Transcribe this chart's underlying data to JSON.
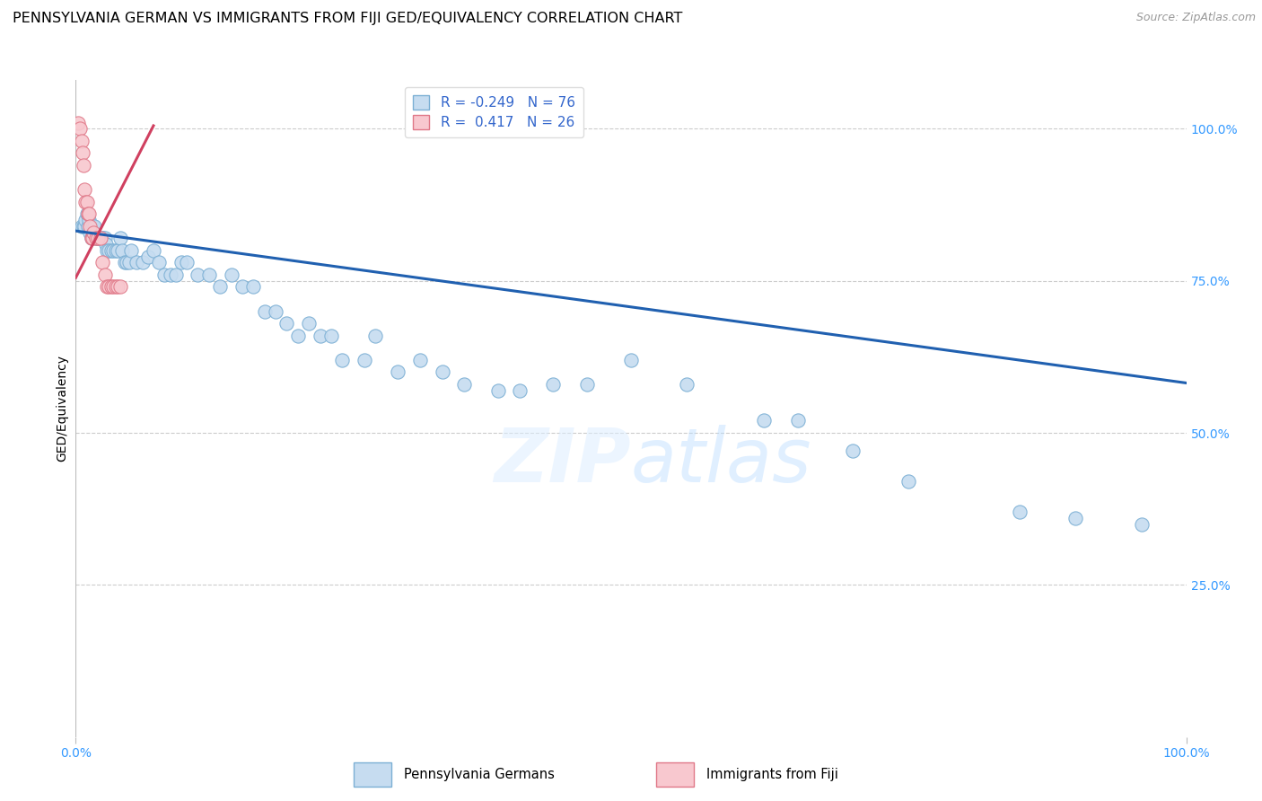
{
  "title": "PENNSYLVANIA GERMAN VS IMMIGRANTS FROM FIJI GED/EQUIVALENCY CORRELATION CHART",
  "source": "Source: ZipAtlas.com",
  "ylabel": "GED/Equivalency",
  "watermark": "ZIPatlas",
  "legend_blue_r": "-0.249",
  "legend_blue_n": "76",
  "legend_pink_r": "0.417",
  "legend_pink_n": "26",
  "legend_label_blue": "Pennsylvania Germans",
  "legend_label_pink": "Immigrants from Fiji",
  "xlim": [
    0.0,
    1.0
  ],
  "ylim": [
    0.0,
    1.08
  ],
  "xtick_positions": [
    0.0,
    1.0
  ],
  "xtick_labels": [
    "0.0%",
    "100.0%"
  ],
  "ytick_values": [
    0.25,
    0.5,
    0.75,
    1.0
  ],
  "ytick_labels": [
    "25.0%",
    "50.0%",
    "75.0%",
    "100.0%"
  ],
  "blue_color": "#c6dcf0",
  "blue_edge": "#7bafd4",
  "pink_color": "#f8c8cf",
  "pink_edge": "#e07888",
  "trend_blue": "#2060b0",
  "trend_pink": "#d04060",
  "blue_scatter_x": [
    0.005,
    0.007,
    0.008,
    0.009,
    0.01,
    0.011,
    0.012,
    0.013,
    0.014,
    0.015,
    0.016,
    0.017,
    0.018,
    0.019,
    0.02,
    0.021,
    0.022,
    0.024,
    0.025,
    0.026,
    0.027,
    0.028,
    0.03,
    0.032,
    0.034,
    0.036,
    0.038,
    0.04,
    0.042,
    0.044,
    0.046,
    0.048,
    0.05,
    0.055,
    0.06,
    0.065,
    0.07,
    0.075,
    0.08,
    0.085,
    0.09,
    0.095,
    0.1,
    0.11,
    0.12,
    0.13,
    0.14,
    0.15,
    0.16,
    0.17,
    0.18,
    0.19,
    0.2,
    0.21,
    0.22,
    0.23,
    0.24,
    0.26,
    0.27,
    0.29,
    0.31,
    0.33,
    0.35,
    0.38,
    0.4,
    0.43,
    0.46,
    0.5,
    0.55,
    0.62,
    0.65,
    0.7,
    0.75,
    0.85,
    0.9,
    0.96
  ],
  "blue_scatter_y": [
    0.84,
    0.84,
    0.84,
    0.85,
    0.86,
    0.84,
    0.85,
    0.83,
    0.82,
    0.84,
    0.83,
    0.84,
    0.82,
    0.82,
    0.82,
    0.82,
    0.82,
    0.82,
    0.82,
    0.82,
    0.81,
    0.8,
    0.8,
    0.8,
    0.8,
    0.8,
    0.8,
    0.82,
    0.8,
    0.78,
    0.78,
    0.78,
    0.8,
    0.78,
    0.78,
    0.79,
    0.8,
    0.78,
    0.76,
    0.76,
    0.76,
    0.78,
    0.78,
    0.76,
    0.76,
    0.74,
    0.76,
    0.74,
    0.74,
    0.7,
    0.7,
    0.68,
    0.66,
    0.68,
    0.66,
    0.66,
    0.62,
    0.62,
    0.66,
    0.6,
    0.62,
    0.6,
    0.58,
    0.57,
    0.57,
    0.58,
    0.58,
    0.62,
    0.58,
    0.52,
    0.52,
    0.47,
    0.42,
    0.37,
    0.36,
    0.35
  ],
  "pink_scatter_x": [
    0.002,
    0.004,
    0.005,
    0.006,
    0.007,
    0.008,
    0.009,
    0.01,
    0.011,
    0.012,
    0.013,
    0.014,
    0.015,
    0.016,
    0.018,
    0.02,
    0.022,
    0.024,
    0.026,
    0.028,
    0.03,
    0.032,
    0.034,
    0.036,
    0.038,
    0.04
  ],
  "pink_scatter_y": [
    1.01,
    1.0,
    0.98,
    0.96,
    0.94,
    0.9,
    0.88,
    0.88,
    0.86,
    0.86,
    0.84,
    0.82,
    0.82,
    0.83,
    0.82,
    0.82,
    0.82,
    0.78,
    0.76,
    0.74,
    0.74,
    0.74,
    0.74,
    0.74,
    0.74,
    0.74
  ],
  "blue_trendline_x": [
    0.0,
    1.0
  ],
  "blue_trendline_y": [
    0.832,
    0.582
  ],
  "pink_trendline_x": [
    0.0,
    0.07
  ],
  "pink_trendline_y": [
    0.755,
    1.005
  ],
  "background_color": "#ffffff",
  "grid_color": "#cccccc",
  "title_fontsize": 11.5,
  "axis_fontsize": 10,
  "tick_fontsize": 10,
  "source_fontsize": 9
}
